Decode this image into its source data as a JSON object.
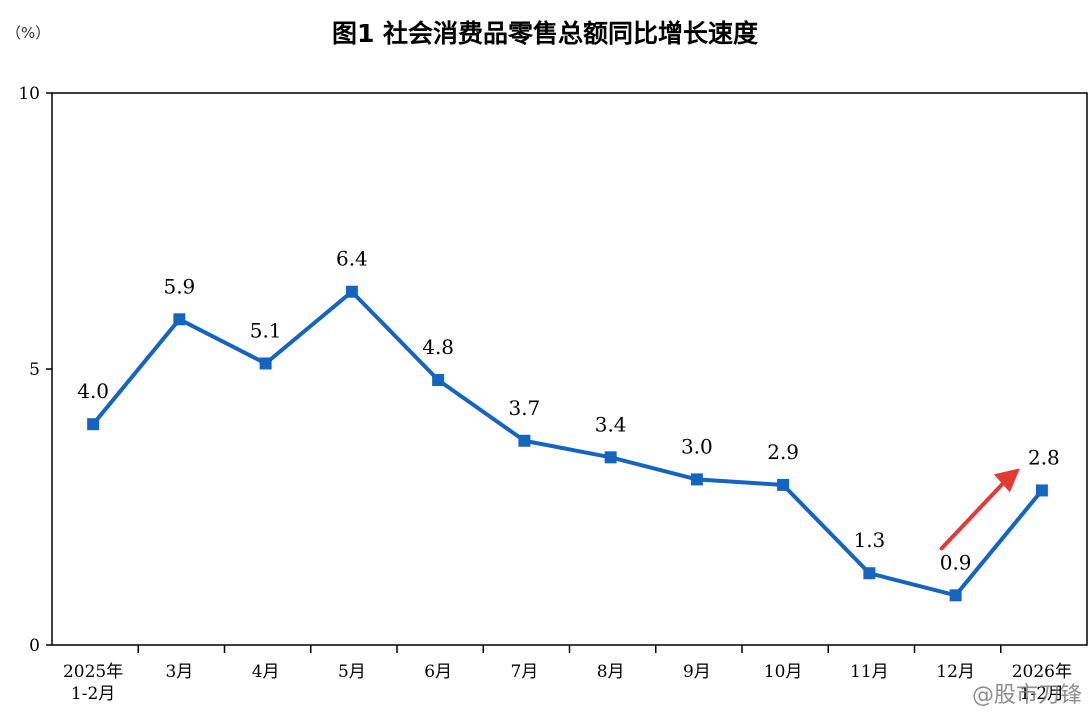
{
  "page": {
    "title": "图1  社会消费品零售总额同比增长速度",
    "unit": "（%）",
    "watermark": "@股市刀锋"
  },
  "chart_data": {
    "type": "line",
    "title": "图1  社会消费品零售总额同比增长速度",
    "ylabel": "（%）",
    "xlabel": "",
    "ylim": [
      0,
      10
    ],
    "yticks": [
      "0",
      "5",
      "10"
    ],
    "categories": [
      [
        "2025年",
        "1-2月"
      ],
      [
        "3月"
      ],
      [
        "4月"
      ],
      [
        "5月"
      ],
      [
        "6月"
      ],
      [
        "7月"
      ],
      [
        "8月"
      ],
      [
        "9月"
      ],
      [
        "10月"
      ],
      [
        "11月"
      ],
      [
        "12月"
      ],
      [
        "2026年",
        "1-2月"
      ]
    ],
    "series": [
      {
        "values": [
          4.0,
          5.9,
          5.1,
          6.4,
          4.8,
          3.7,
          3.4,
          3.0,
          2.9,
          1.3,
          0.9,
          2.8
        ],
        "labels": [
          "4.0",
          "5.9",
          "5.1",
          "6.4",
          "4.8",
          "3.7",
          "3.4",
          "3.0",
          "2.9",
          "1.3",
          "0.9",
          "2.8"
        ],
        "color": "#1565c0"
      }
    ],
    "grid": false,
    "legend": "none",
    "annotation": {
      "type": "arrow",
      "color": "#e53935",
      "points_to_category": 11
    }
  }
}
